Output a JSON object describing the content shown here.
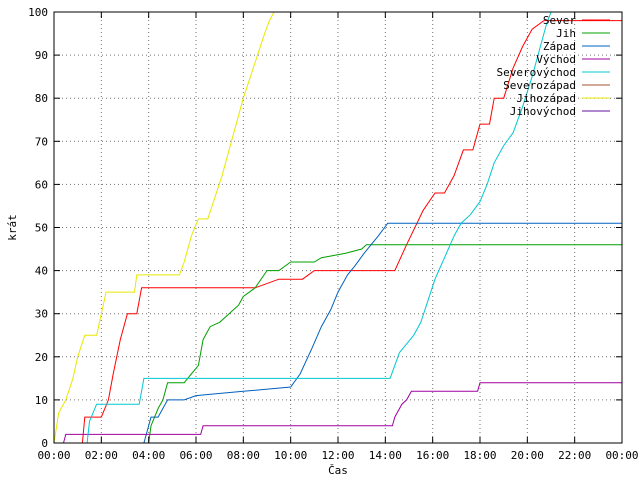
{
  "chart_data": {
    "type": "line",
    "title": "",
    "xlabel": "Čas",
    "ylabel": "krát",
    "xlim": [
      0,
      24
    ],
    "ylim": [
      0,
      100
    ],
    "x_ticks": [
      "00:00",
      "02:00",
      "04:00",
      "06:00",
      "08:00",
      "10:00",
      "12:00",
      "14:00",
      "16:00",
      "18:00",
      "20:00",
      "22:00",
      "00:00"
    ],
    "y_ticks": [
      0,
      10,
      20,
      30,
      40,
      50,
      60,
      70,
      80,
      90,
      100
    ],
    "grid": true,
    "legend_position": "top-right",
    "series": [
      {
        "name": "Sever",
        "color": "#ff0000",
        "points": [
          [
            1.2,
            0
          ],
          [
            1.3,
            6
          ],
          [
            1.6,
            6
          ],
          [
            2.0,
            6
          ],
          [
            2.3,
            10
          ],
          [
            2.5,
            16
          ],
          [
            2.8,
            24
          ],
          [
            3.1,
            30
          ],
          [
            3.5,
            30
          ],
          [
            3.7,
            36
          ],
          [
            8.5,
            36
          ],
          [
            9.5,
            38
          ],
          [
            10.5,
            38
          ],
          [
            11.0,
            40
          ],
          [
            12.5,
            40
          ],
          [
            13.0,
            40
          ],
          [
            14.4,
            40
          ],
          [
            14.9,
            46
          ],
          [
            15.6,
            54
          ],
          [
            16.1,
            58
          ],
          [
            16.5,
            58
          ],
          [
            16.9,
            62
          ],
          [
            17.3,
            68
          ],
          [
            17.7,
            68
          ],
          [
            18.0,
            74
          ],
          [
            18.4,
            74
          ],
          [
            18.6,
            80
          ],
          [
            19.0,
            80
          ],
          [
            19.4,
            87
          ],
          [
            19.8,
            92
          ],
          [
            20.2,
            96
          ],
          [
            20.7,
            98
          ],
          [
            24.0,
            98
          ]
        ]
      },
      {
        "name": "Jih",
        "color": "#00a000",
        "points": [
          [
            4.0,
            0
          ],
          [
            4.1,
            4
          ],
          [
            4.4,
            8
          ],
          [
            4.6,
            10
          ],
          [
            4.8,
            14
          ],
          [
            5.5,
            14
          ],
          [
            5.8,
            16
          ],
          [
            6.1,
            18
          ],
          [
            6.3,
            24
          ],
          [
            6.6,
            27
          ],
          [
            7.0,
            28
          ],
          [
            7.4,
            30
          ],
          [
            7.8,
            32
          ],
          [
            8.0,
            34
          ],
          [
            8.5,
            36
          ],
          [
            9.0,
            40
          ],
          [
            9.5,
            40
          ],
          [
            10.0,
            42
          ],
          [
            11.0,
            42
          ],
          [
            11.3,
            43
          ],
          [
            12.3,
            44
          ],
          [
            13.0,
            45
          ],
          [
            13.2,
            46
          ],
          [
            24.0,
            46
          ]
        ]
      },
      {
        "name": "Západ",
        "color": "#0060c0",
        "points": [
          [
            3.8,
            0
          ],
          [
            3.9,
            2
          ],
          [
            4.1,
            6
          ],
          [
            4.4,
            6
          ],
          [
            4.8,
            10
          ],
          [
            5.5,
            10
          ],
          [
            6.0,
            11
          ],
          [
            8.0,
            12
          ],
          [
            10.0,
            13
          ],
          [
            10.4,
            16
          ],
          [
            10.9,
            22
          ],
          [
            11.3,
            27
          ],
          [
            11.7,
            31
          ],
          [
            12.0,
            35
          ],
          [
            12.4,
            39
          ],
          [
            12.7,
            41
          ],
          [
            13.1,
            44
          ],
          [
            13.4,
            46
          ],
          [
            13.7,
            48
          ],
          [
            14.1,
            51
          ],
          [
            24.0,
            51
          ]
        ]
      },
      {
        "name": "Východ",
        "color": "#a000a0",
        "points": [
          [
            0.4,
            0
          ],
          [
            0.5,
            2
          ],
          [
            6.2,
            2
          ],
          [
            6.3,
            4
          ],
          [
            14.3,
            4
          ],
          [
            14.4,
            6
          ],
          [
            14.7,
            9
          ],
          [
            14.9,
            10
          ],
          [
            15.1,
            12
          ],
          [
            17.9,
            12
          ],
          [
            18.0,
            14
          ],
          [
            24.0,
            14
          ]
        ]
      },
      {
        "name": "Severovýchod",
        "color": "#00c8d0",
        "points": [
          [
            1.4,
            0
          ],
          [
            1.5,
            5
          ],
          [
            1.8,
            9
          ],
          [
            3.6,
            9
          ],
          [
            3.8,
            15
          ],
          [
            14.2,
            15
          ],
          [
            14.4,
            18
          ],
          [
            14.6,
            21
          ],
          [
            14.9,
            23
          ],
          [
            15.2,
            25
          ],
          [
            15.5,
            28
          ],
          [
            15.8,
            33
          ],
          [
            16.1,
            38
          ],
          [
            16.5,
            43
          ],
          [
            16.9,
            48
          ],
          [
            17.2,
            51
          ],
          [
            17.6,
            53
          ],
          [
            18.0,
            56
          ],
          [
            18.3,
            60
          ],
          [
            18.6,
            65
          ],
          [
            19.0,
            69
          ],
          [
            19.4,
            72
          ],
          [
            19.8,
            78
          ],
          [
            20.2,
            85
          ],
          [
            20.5,
            91
          ],
          [
            20.8,
            97
          ],
          [
            21.0,
            100
          ]
        ]
      },
      {
        "name": "Severozápad",
        "color": "#a05030",
        "points": []
      },
      {
        "name": "Jihozápad",
        "color": "#e8e800",
        "points": [
          [
            0.0,
            0
          ],
          [
            0.2,
            7
          ],
          [
            0.5,
            10
          ],
          [
            0.8,
            15
          ],
          [
            1.0,
            20
          ],
          [
            1.3,
            25
          ],
          [
            1.8,
            25
          ],
          [
            2.2,
            35
          ],
          [
            3.4,
            35
          ],
          [
            3.5,
            39
          ],
          [
            5.3,
            39
          ],
          [
            5.5,
            42
          ],
          [
            5.8,
            48
          ],
          [
            6.1,
            52
          ],
          [
            6.5,
            52
          ],
          [
            6.8,
            57
          ],
          [
            7.1,
            62
          ],
          [
            7.4,
            68
          ],
          [
            7.7,
            74
          ],
          [
            8.0,
            80
          ],
          [
            8.3,
            85
          ],
          [
            8.6,
            90
          ],
          [
            8.9,
            95
          ],
          [
            9.1,
            98
          ],
          [
            9.3,
            100
          ]
        ]
      },
      {
        "name": "Jihovýchod",
        "color": "#6010a0",
        "points": []
      }
    ]
  }
}
